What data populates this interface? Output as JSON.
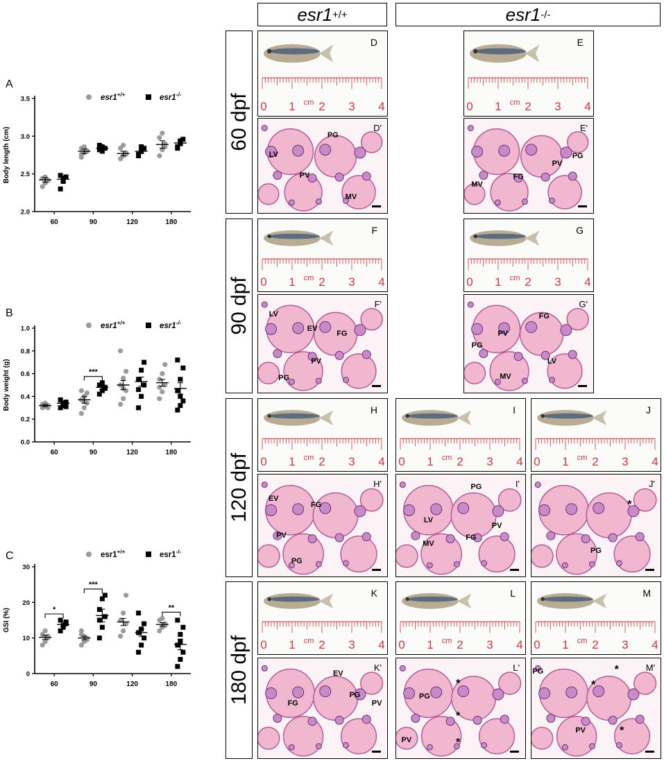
{
  "genotype_headers": {
    "wt_base": "esr1",
    "wt_sup": "+/+",
    "ko_base": "esr1",
    "ko_sup": "-/-"
  },
  "legend": {
    "wt_base": "esr1",
    "wt_sup": "+/+",
    "ko_base": "esr1",
    "ko_sup": "-/-"
  },
  "ages": [
    "60 dpf",
    "90 dpf",
    "120 dpf",
    "180 dpf"
  ],
  "ruler": {
    "unit": "cm",
    "ticks": [
      "0",
      "1",
      "2",
      "3",
      "4"
    ]
  },
  "colors": {
    "wt": "#9b9b9b",
    "ko": "#000000",
    "ruler": "#e0303a",
    "he_bg": "#fbf3f6"
  },
  "chart_data": [
    {
      "panel": "A",
      "type": "scatter",
      "ylabel": "Body length (cm)",
      "xlabel": "",
      "categories": [
        "60",
        "90",
        "120",
        "180"
      ],
      "ylim": [
        2.0,
        3.5
      ],
      "yticks": [
        "2.0",
        "2.5",
        "3.0",
        "3.5"
      ],
      "series": [
        {
          "name": "esr1+/+",
          "means": [
            2.42,
            2.8,
            2.77,
            2.89
          ],
          "sem": [
            0.03,
            0.03,
            0.03,
            0.05
          ],
          "points": [
            [
              2.33,
              2.38,
              2.42,
              2.44,
              2.46,
              2.41
            ],
            [
              2.72,
              2.78,
              2.8,
              2.84,
              2.86,
              2.81,
              2.76
            ],
            [
              2.7,
              2.74,
              2.78,
              2.84,
              2.88,
              2.76
            ],
            [
              2.74,
              2.82,
              2.9,
              2.98,
              3.04,
              2.86
            ]
          ]
        },
        {
          "name": "esr1-/-",
          "means": [
            2.43,
            2.84,
            2.8,
            2.91
          ],
          "sem": [
            0.04,
            0.02,
            0.03,
            0.03
          ],
          "points": [
            [
              2.3,
              2.4,
              2.46,
              2.48,
              2.44
            ],
            [
              2.82,
              2.86,
              2.84,
              2.88,
              2.8
            ],
            [
              2.74,
              2.8,
              2.84,
              2.76,
              2.86
            ],
            [
              2.84,
              2.9,
              2.96,
              2.86,
              2.94
            ]
          ]
        }
      ],
      "significance": []
    },
    {
      "panel": "B",
      "type": "scatter",
      "ylabel": "Body weight (g)",
      "xlabel": "",
      "categories": [
        "60",
        "90",
        "120",
        "180"
      ],
      "ylim": [
        0.0,
        1.0
      ],
      "yticks": [
        "0.0",
        "0.2",
        "0.4",
        "0.6",
        "0.8",
        "1.0"
      ],
      "series": [
        {
          "name": "esr1+/+",
          "means": [
            0.32,
            0.37,
            0.5,
            0.52
          ],
          "sem": [
            0.01,
            0.03,
            0.04,
            0.03
          ],
          "points": [
            [
              0.3,
              0.31,
              0.32,
              0.33,
              0.34,
              0.3,
              0.32
            ],
            [
              0.25,
              0.3,
              0.34,
              0.37,
              0.4,
              0.43,
              0.45,
              0.36
            ],
            [
              0.33,
              0.38,
              0.45,
              0.5,
              0.56,
              0.62,
              0.8,
              0.47
            ],
            [
              0.38,
              0.44,
              0.5,
              0.55,
              0.6,
              0.68,
              0.48
            ]
          ]
        },
        {
          "name": "esr1-/-",
          "means": [
            0.34,
            0.48,
            0.53,
            0.47
          ],
          "sem": [
            0.01,
            0.02,
            0.04,
            0.05
          ],
          "points": [
            [
              0.3,
              0.32,
              0.35,
              0.37,
              0.34,
              0.31
            ],
            [
              0.42,
              0.45,
              0.48,
              0.5,
              0.52,
              0.47
            ],
            [
              0.3,
              0.4,
              0.5,
              0.55,
              0.63,
              0.7,
              0.46
            ],
            [
              0.28,
              0.32,
              0.36,
              0.45,
              0.55,
              0.65,
              0.72,
              0.4
            ]
          ]
        }
      ],
      "significance": [
        {
          "category": "90",
          "label": "***"
        }
      ]
    },
    {
      "panel": "C",
      "type": "scatter",
      "ylabel": "GSI (%)",
      "xlabel": "",
      "categories": [
        "60",
        "90",
        "120",
        "180"
      ],
      "ylim": [
        0,
        30
      ],
      "yticks": [
        "0",
        "10",
        "20",
        "30"
      ],
      "series": [
        {
          "name": "esr1+/+",
          "means": [
            10.2,
            10,
            14.5,
            13.8
          ],
          "sem": [
            0.6,
            0.5,
            1.0,
            0.5
          ],
          "points": [
            [
              8,
              9,
              10,
              11,
              12,
              10.5
            ],
            [
              8,
              9,
              10,
              11,
              10.5,
              9.5,
              12
            ],
            [
              10.5,
              12,
              14,
              15,
              17,
              22
            ],
            [
              12,
              13,
              14,
              15,
              15.5,
              13.5
            ]
          ]
        },
        {
          "name": "esr1-/-",
          "means": [
            13.8,
            16.3,
            11.5,
            8.2
          ],
          "sem": [
            0.6,
            1.8,
            1.0,
            1.5
          ],
          "points": [
            [
              12,
              13,
              14,
              15,
              13.5,
              14.5
            ],
            [
              10,
              13,
              16,
              18,
              21,
              22,
              15
            ],
            [
              6,
              8,
              10,
              11.5,
              12.5,
              14,
              17
            ],
            [
              2,
              4,
              6,
              8,
              11,
              13,
              15,
              9
            ]
          ]
        }
      ],
      "significance": [
        {
          "category": "60",
          "label": "*"
        },
        {
          "category": "90",
          "label": "***"
        },
        {
          "category": "180",
          "label": "**"
        }
      ]
    }
  ],
  "photo_panels": [
    {
      "id": "D",
      "label": "D"
    },
    {
      "id": "E",
      "label": "E"
    },
    {
      "id": "F",
      "label": "F"
    },
    {
      "id": "G",
      "label": "G"
    },
    {
      "id": "H",
      "label": "H"
    },
    {
      "id": "I",
      "label": "I"
    },
    {
      "id": "J",
      "label": "J"
    },
    {
      "id": "K",
      "label": "K"
    },
    {
      "id": "L",
      "label": "L"
    },
    {
      "id": "M",
      "label": "M"
    }
  ],
  "histology_panels": [
    {
      "id": "Dp",
      "label": "D'",
      "annotations": [
        "PG",
        "LV",
        "PV",
        "MV"
      ]
    },
    {
      "id": "Ep",
      "label": "E'",
      "annotations": [
        "PV",
        "PG",
        "MV",
        "FG"
      ]
    },
    {
      "id": "Fp",
      "label": "F'",
      "annotations": [
        "LV",
        "EV",
        "FG",
        "PV",
        "PG"
      ]
    },
    {
      "id": "Gp",
      "label": "G'",
      "annotations": [
        "FG",
        "PV",
        "PG",
        "LV",
        "MV"
      ]
    },
    {
      "id": "Hp",
      "label": "H'",
      "annotations": [
        "EV",
        "FG",
        "PV",
        "PG"
      ]
    },
    {
      "id": "Ip",
      "label": "I'",
      "annotations": [
        "PG",
        "LV",
        "PV",
        "MV",
        "FG"
      ]
    },
    {
      "id": "Jp",
      "label": "J'",
      "annotations": [
        "*",
        "PG"
      ]
    },
    {
      "id": "Kp",
      "label": "K'",
      "annotations": [
        "EV",
        "FG",
        "PG",
        "PV"
      ]
    },
    {
      "id": "Lp",
      "label": "L'",
      "annotations": [
        "PG",
        "*",
        "*",
        "PV",
        "*"
      ]
    },
    {
      "id": "Mp",
      "label": "M'",
      "annotations": [
        "PG",
        "*",
        "*",
        "PV",
        "*"
      ]
    }
  ]
}
